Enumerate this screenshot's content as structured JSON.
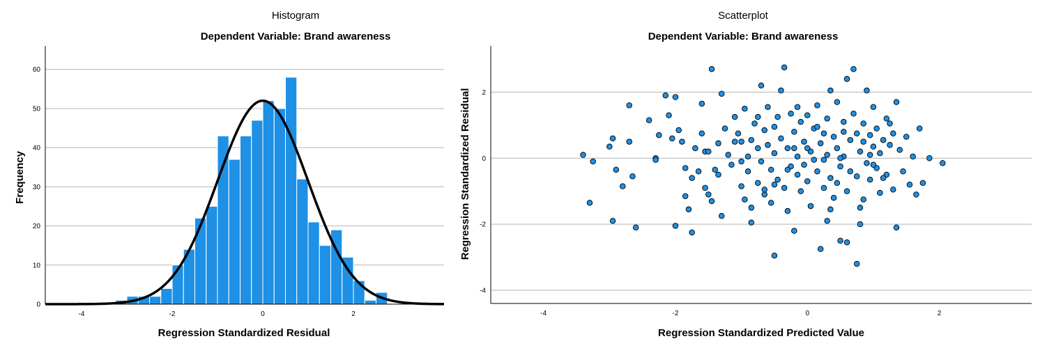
{
  "chart_data": [
    {
      "type": "bar",
      "title": "Histogram",
      "subtitle": "Dependent Variable: Brand awareness",
      "xlabel": "Regression Standardized Residual",
      "ylabel": "Frequency",
      "xlim": [
        -4.8,
        4.0
      ],
      "ylim": [
        0,
        66
      ],
      "xticks": [
        -4,
        -2,
        0,
        2
      ],
      "yticks": [
        0,
        10,
        20,
        30,
        40,
        50,
        60
      ],
      "grid": "horizontal",
      "bin_width": 0.25,
      "bin_starts": [
        -3.25,
        -3.0,
        -2.75,
        -2.5,
        -2.25,
        -2.0,
        -1.75,
        -1.5,
        -1.25,
        -1.0,
        -0.75,
        -0.5,
        -0.25,
        0.0,
        0.25,
        0.5,
        0.75,
        1.0,
        1.25,
        1.5,
        1.75,
        2.0,
        2.25,
        2.5
      ],
      "values": [
        1,
        2,
        2,
        2,
        4,
        10,
        14,
        22,
        25,
        43,
        37,
        43,
        47,
        52,
        50,
        58,
        32,
        21,
        15,
        19,
        12,
        6,
        1,
        3
      ],
      "bar_color": "#1e90e6",
      "curve": {
        "type": "normal",
        "mean": 0.0,
        "std_dev": 0.998,
        "peak": 52,
        "color": "#000000"
      }
    },
    {
      "type": "scatter",
      "title": "Scatterplot",
      "subtitle": "Dependent Variable: Brand awareness",
      "xlabel": "Regression Standardized Predicted Value",
      "ylabel": "Regression Standardized Residual",
      "xlim": [
        -4.8,
        3.4
      ],
      "ylim": [
        -4.4,
        3.4
      ],
      "xticks": [
        -4,
        -2,
        0,
        2
      ],
      "yticks": [
        -4,
        -2,
        0,
        2
      ],
      "grid": "horizontal",
      "point_color": "#1e90e6",
      "points": [
        [
          -3.4,
          0.1
        ],
        [
          -3.25,
          -0.1
        ],
        [
          -3.3,
          -1.35
        ],
        [
          -2.95,
          0.6
        ],
        [
          -3.0,
          0.35
        ],
        [
          -2.9,
          -0.35
        ],
        [
          -2.95,
          -1.9
        ],
        [
          -2.8,
          -0.85
        ],
        [
          -2.7,
          0.5
        ],
        [
          -2.7,
          1.6
        ],
        [
          -2.65,
          -0.55
        ],
        [
          -2.6,
          -2.1
        ],
        [
          -2.4,
          1.15
        ],
        [
          -2.3,
          0.0
        ],
        [
          -2.3,
          -0.05
        ],
        [
          -2.25,
          0.7
        ],
        [
          -2.15,
          1.9
        ],
        [
          -2.1,
          1.3
        ],
        [
          -2.05,
          0.6
        ],
        [
          -2.0,
          1.85
        ],
        [
          -2.0,
          -2.05
        ],
        [
          -1.95,
          0.85
        ],
        [
          -1.9,
          0.5
        ],
        [
          -1.85,
          -0.3
        ],
        [
          -1.85,
          -1.15
        ],
        [
          -1.8,
          -1.55
        ],
        [
          -1.75,
          -2.25
        ],
        [
          -1.75,
          -0.6
        ],
        [
          -1.7,
          0.3
        ],
        [
          -1.65,
          -0.4
        ],
        [
          -1.6,
          0.75
        ],
        [
          -1.6,
          1.65
        ],
        [
          -1.55,
          0.2
        ],
        [
          -1.5,
          -1.1
        ],
        [
          -1.45,
          -1.3
        ],
        [
          -1.45,
          2.7
        ],
        [
          -1.4,
          -0.35
        ],
        [
          -1.35,
          0.45
        ],
        [
          -1.3,
          1.95
        ],
        [
          -1.3,
          -1.75
        ],
        [
          -1.25,
          0.9
        ],
        [
          -1.2,
          0.1
        ],
        [
          -1.15,
          -0.2
        ],
        [
          -1.1,
          1.25
        ],
        [
          -1.05,
          0.75
        ],
        [
          -1.0,
          -0.85
        ],
        [
          -1.0,
          0.5
        ],
        [
          -0.95,
          1.5
        ],
        [
          -0.9,
          -0.4
        ],
        [
          -0.9,
          0.05
        ],
        [
          -0.85,
          -1.95
        ],
        [
          -0.85,
          -1.5
        ],
        [
          -0.8,
          1.05
        ],
        [
          -0.75,
          0.3
        ],
        [
          -0.75,
          -0.75
        ],
        [
          -0.7,
          2.2
        ],
        [
          -0.7,
          -0.1
        ],
        [
          -0.65,
          0.85
        ],
        [
          -0.65,
          -1.1
        ],
        [
          -0.6,
          1.55
        ],
        [
          -0.6,
          0.4
        ],
        [
          -0.55,
          -0.35
        ],
        [
          -0.55,
          -1.35
        ],
        [
          -0.5,
          0.95
        ],
        [
          -0.5,
          0.15
        ],
        [
          -0.45,
          1.25
        ],
        [
          -0.45,
          -0.65
        ],
        [
          -0.4,
          2.05
        ],
        [
          -0.4,
          0.6
        ],
        [
          -0.35,
          -0.9
        ],
        [
          -0.35,
          2.75
        ],
        [
          -0.3,
          0.3
        ],
        [
          -0.3,
          -1.6
        ],
        [
          -0.25,
          1.35
        ],
        [
          -0.25,
          -0.25
        ],
        [
          -0.2,
          0.8
        ],
        [
          -0.2,
          -2.2
        ],
        [
          -0.15,
          -0.5
        ],
        [
          -0.15,
          0.05
        ],
        [
          -0.1,
          1.1
        ],
        [
          -0.1,
          -1.0
        ],
        [
          -0.05,
          0.5
        ],
        [
          -0.05,
          -0.2
        ],
        [
          0.0,
          1.3
        ],
        [
          0.0,
          -0.7
        ],
        [
          0.05,
          0.2
        ],
        [
          0.05,
          -1.45
        ],
        [
          0.1,
          0.9
        ],
        [
          0.1,
          -0.05
        ],
        [
          0.15,
          1.6
        ],
        [
          0.15,
          -0.4
        ],
        [
          0.2,
          0.45
        ],
        [
          0.2,
          -2.75
        ],
        [
          0.25,
          0.75
        ],
        [
          0.25,
          -0.9
        ],
        [
          0.3,
          1.2
        ],
        [
          0.3,
          0.1
        ],
        [
          0.35,
          2.05
        ],
        [
          0.35,
          -0.6
        ],
        [
          0.4,
          0.65
        ],
        [
          0.4,
          -1.2
        ],
        [
          0.45,
          0.3
        ],
        [
          0.45,
          1.7
        ],
        [
          0.5,
          -0.25
        ],
        [
          0.5,
          -2.5
        ],
        [
          0.55,
          0.8
        ],
        [
          0.55,
          0.05
        ],
        [
          0.6,
          2.4
        ],
        [
          0.6,
          -1.0
        ],
        [
          0.65,
          0.55
        ],
        [
          0.65,
          -0.4
        ],
        [
          0.7,
          1.35
        ],
        [
          0.7,
          2.7
        ],
        [
          0.75,
          0.75
        ],
        [
          0.75,
          -3.2
        ],
        [
          0.8,
          0.2
        ],
        [
          0.8,
          -1.5
        ],
        [
          0.85,
          1.05
        ],
        [
          0.85,
          0.5
        ],
        [
          0.9,
          -0.15
        ],
        [
          0.9,
          2.05
        ],
        [
          0.95,
          0.7
        ],
        [
          0.95,
          -0.65
        ],
        [
          1.0,
          0.35
        ],
        [
          1.0,
          1.55
        ],
        [
          1.05,
          -0.3
        ],
        [
          1.05,
          0.9
        ],
        [
          1.1,
          -1.05
        ],
        [
          1.1,
          0.15
        ],
        [
          1.15,
          0.55
        ],
        [
          1.2,
          -0.5
        ],
        [
          1.2,
          1.2
        ],
        [
          1.25,
          0.4
        ],
        [
          1.3,
          -0.95
        ],
        [
          1.3,
          0.75
        ],
        [
          1.35,
          -2.1
        ],
        [
          1.35,
          1.7
        ],
        [
          1.4,
          0.25
        ],
        [
          1.45,
          -0.4
        ],
        [
          1.5,
          0.65
        ],
        [
          1.55,
          -0.8
        ],
        [
          1.6,
          0.05
        ],
        [
          1.65,
          -1.1
        ],
        [
          1.7,
          0.9
        ],
        [
          1.75,
          -0.75
        ],
        [
          1.85,
          0.0
        ],
        [
          2.05,
          -0.15
        ],
        [
          -1.5,
          0.2
        ],
        [
          -1.0,
          -0.1
        ],
        [
          -0.5,
          -0.8
        ],
        [
          0.0,
          0.3
        ],
        [
          0.5,
          0.0
        ],
        [
          1.0,
          -0.2
        ],
        [
          0.3,
          -1.9
        ],
        [
          -0.5,
          -2.95
        ],
        [
          0.8,
          -2.0
        ],
        [
          0.6,
          -2.55
        ],
        [
          -1.35,
          -0.5
        ],
        [
          -1.1,
          0.5
        ],
        [
          -0.85,
          0.55
        ],
        [
          -0.3,
          -0.35
        ],
        [
          0.25,
          -0.05
        ],
        [
          0.45,
          -0.75
        ],
        [
          0.75,
          -0.55
        ],
        [
          1.15,
          -0.6
        ],
        [
          -0.2,
          0.3
        ],
        [
          0.95,
          0.1
        ],
        [
          -0.65,
          -0.95
        ],
        [
          0.15,
          0.95
        ],
        [
          0.55,
          1.1
        ],
        [
          -0.95,
          -1.25
        ],
        [
          -0.15,
          1.55
        ],
        [
          0.35,
          -1.55
        ],
        [
          0.85,
          -1.25
        ],
        [
          1.25,
          1.05
        ],
        [
          -1.55,
          -0.9
        ],
        [
          -0.75,
          1.25
        ]
      ]
    }
  ]
}
